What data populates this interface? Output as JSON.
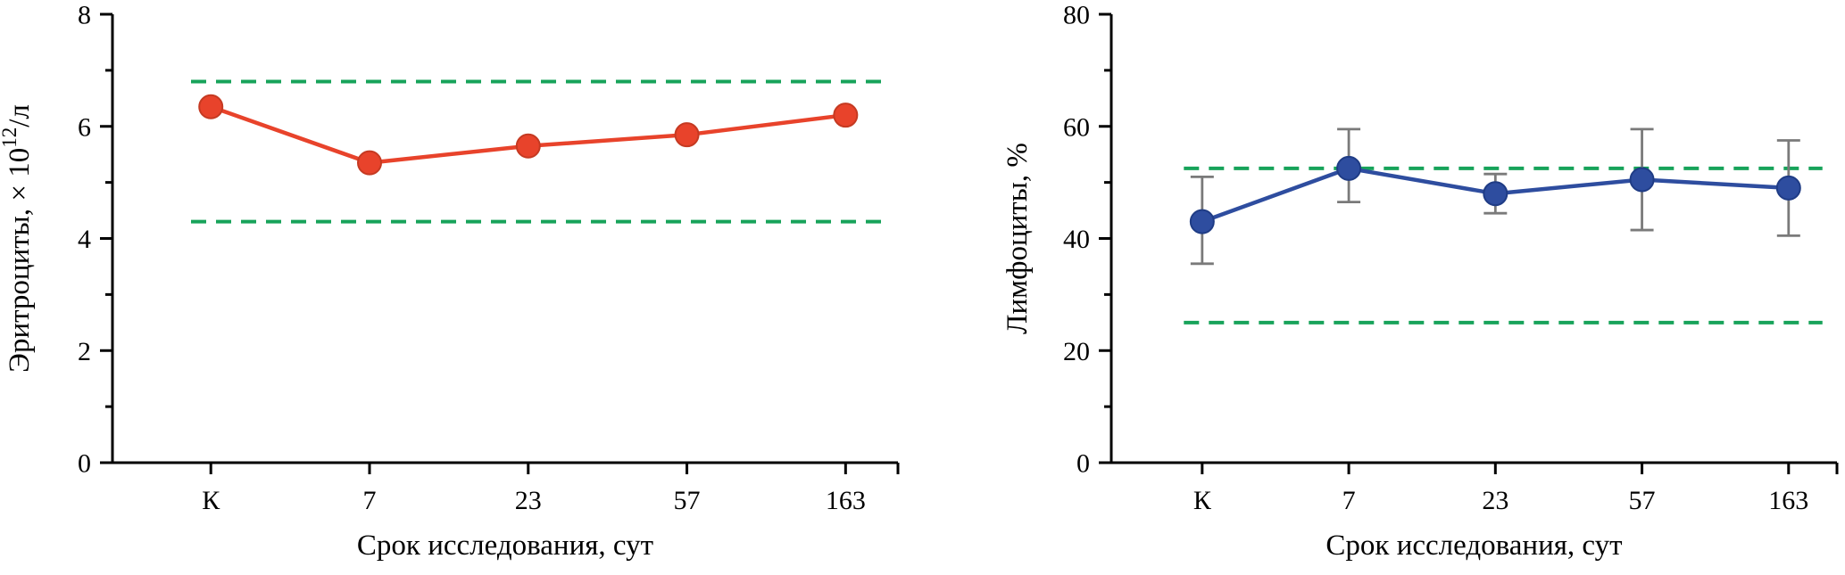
{
  "figure": {
    "background": "#ffffff",
    "axis_color": "#000000",
    "text_color": "#000000"
  },
  "chart_data": [
    {
      "type": "line",
      "name": "erythrocytes",
      "ylabel": "Эритроциты, × 10¹²/л",
      "ylabel_parts": [
        {
          "text": "Эритроциты, × 10",
          "sup": false
        },
        {
          "text": "12",
          "sup": true
        },
        {
          "text": "/л",
          "sup": false
        }
      ],
      "xlabel": "Срок исследования, сут",
      "categories": [
        "К",
        "7",
        "23",
        "57",
        "163"
      ],
      "values": [
        6.35,
        5.35,
        5.65,
        5.85,
        6.2
      ],
      "ylim": [
        0,
        8
      ],
      "yticks": [
        0,
        2,
        4,
        6,
        8
      ],
      "ytick_labels": [
        "0",
        "2",
        "4",
        "6",
        "8"
      ],
      "minor_step": 1,
      "ref_lines": [
        6.8,
        4.3
      ],
      "ref_style": "dashed",
      "line_color": "#E8432B",
      "marker_color": "#E8432B",
      "marker_edge": "#C53A22",
      "ref_color": "#17A35A",
      "grid": false,
      "legend": "none"
    },
    {
      "type": "line",
      "name": "lymphocytes",
      "ylabel": "Лимфоциты, %",
      "ylabel_parts": [
        {
          "text": "Лимфоциты, %",
          "sup": false
        }
      ],
      "xlabel": "Срок исследования, сут",
      "categories": [
        "К",
        "7",
        "23",
        "57",
        "163"
      ],
      "values": [
        43,
        52.5,
        48,
        50.5,
        49
      ],
      "error_low": [
        35.5,
        46.5,
        44.5,
        41.5,
        40.5
      ],
      "error_high": [
        51,
        59.5,
        51.5,
        59.5,
        57.5
      ],
      "ylim": [
        0,
        80
      ],
      "yticks": [
        0,
        20,
        40,
        60,
        80
      ],
      "ytick_labels": [
        "0",
        "20",
        "40",
        "60",
        "80"
      ],
      "minor_step": 10,
      "ref_lines": [
        52.5,
        25
      ],
      "ref_style": "dashed",
      "line_color": "#2E4D9F",
      "marker_color": "#2E4D9F",
      "marker_edge": "#1F3C85",
      "error_color": "#7A7A7A",
      "ref_color": "#17A35A",
      "grid": false,
      "legend": "none"
    }
  ]
}
